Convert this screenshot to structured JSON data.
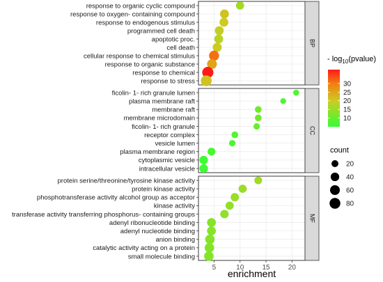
{
  "chart_data": {
    "type": "scatter",
    "xlabel": "enrichment",
    "xlim": [
      2,
      22.5
    ],
    "xticks": [
      5,
      10,
      15,
      20
    ],
    "panels": [
      {
        "name": "BP",
        "terms": [
          {
            "label": "response to organic cyclic compound",
            "x": 10.0,
            "count": 35,
            "neglog10p": 16
          },
          {
            "label": "response to oxygen- containing compound",
            "x": 7.0,
            "count": 45,
            "neglog10p": 21
          },
          {
            "label": "response to endogenous stimulus",
            "x": 6.9,
            "count": 45,
            "neglog10p": 20
          },
          {
            "label": "programmed cell death",
            "x": 6.0,
            "count": 45,
            "neglog10p": 19
          },
          {
            "label": "apoptotic proc.",
            "x": 5.9,
            "count": 45,
            "neglog10p": 18
          },
          {
            "label": "cell death",
            "x": 5.6,
            "count": 48,
            "neglog10p": 20
          },
          {
            "label": "cellular response to chemical stimulus",
            "x": 5.0,
            "count": 65,
            "neglog10p": 31
          },
          {
            "label": "response to organic substance",
            "x": 4.6,
            "count": 60,
            "neglog10p": 25
          },
          {
            "label": "response to chemical",
            "x": 3.8,
            "count": 88,
            "neglog10p": 38
          },
          {
            "label": "response to stress",
            "x": 3.5,
            "count": 80,
            "neglog10p": 21
          }
        ]
      },
      {
        "name": "CC",
        "terms": [
          {
            "label": "ficolin- 1- rich granule lumen",
            "x": 20.8,
            "count": 12,
            "neglog10p": 8
          },
          {
            "label": "plasma membrane raft",
            "x": 18.3,
            "count": 10,
            "neglog10p": 7
          },
          {
            "label": "membrane raft",
            "x": 13.5,
            "count": 18,
            "neglog10p": 11
          },
          {
            "label": "membrane microdomain",
            "x": 13.5,
            "count": 18,
            "neglog10p": 11
          },
          {
            "label": "ficolin- 1- rich granule",
            "x": 13.2,
            "count": 15,
            "neglog10p": 10
          },
          {
            "label": "receptor complex",
            "x": 9.0,
            "count": 18,
            "neglog10p": 8
          },
          {
            "label": "vesicle lumen",
            "x": 8.5,
            "count": 15,
            "neglog10p": 7
          },
          {
            "label": "plasma membrane region",
            "x": 4.5,
            "count": 30,
            "neglog10p": 7
          },
          {
            "label": "cytoplasmic vesicle",
            "x": 3.0,
            "count": 40,
            "neglog10p": 6
          },
          {
            "label": "intracellular vesicle",
            "x": 3.0,
            "count": 40,
            "neglog10p": 6
          }
        ]
      },
      {
        "name": "MF",
        "terms": [
          {
            "label": "protein serine/threonine/tyrosine kinase activity",
            "x": 13.5,
            "count": 30,
            "neglog10p": 16
          },
          {
            "label": "protein kinase activity",
            "x": 10.5,
            "count": 35,
            "neglog10p": 15
          },
          {
            "label": "phosphotransferase activity alcohol group as acceptor",
            "x": 9.0,
            "count": 38,
            "neglog10p": 15
          },
          {
            "label": "kinase activity",
            "x": 8.0,
            "count": 35,
            "neglog10p": 14
          },
          {
            "label": "transferase activity transferring phosphorus- containing groups",
            "x": 7.0,
            "count": 38,
            "neglog10p": 14
          },
          {
            "label": "adenyl ribonucleotide binding",
            "x": 4.5,
            "count": 45,
            "neglog10p": 13
          },
          {
            "label": "adenyl nucleotide binding",
            "x": 4.5,
            "count": 45,
            "neglog10p": 13
          },
          {
            "label": "anion binding",
            "x": 4.2,
            "count": 55,
            "neglog10p": 13
          },
          {
            "label": "catalytic activity acting on a protein",
            "x": 4.1,
            "count": 55,
            "neglog10p": 13
          },
          {
            "label": "small molecule binding",
            "x": 4.0,
            "count": 55,
            "neglog10p": 13
          }
        ]
      }
    ],
    "color_legend": {
      "title_prefix": "- log",
      "title_sub": "10",
      "title_suffix": "(pvalue)",
      "ticks": [
        10,
        15,
        20,
        25,
        30
      ],
      "range": [
        5,
        38
      ],
      "low_color": "#33ff33",
      "high_color": "#ff1a1a"
    },
    "size_legend": {
      "title": "count",
      "values": [
        20,
        40,
        60,
        80
      ]
    },
    "grid": true,
    "legend_position": "right"
  }
}
